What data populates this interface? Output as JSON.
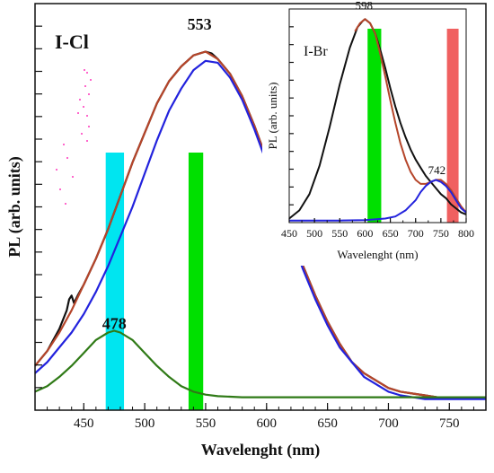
{
  "colors": {
    "black": "#111111",
    "brown": "#b5452a",
    "blue": "#2222dd",
    "green_curve": "#2f7a16",
    "green_band": "#00e000",
    "cyan_band": "#00e5f0",
    "red_band": "#f06060",
    "pink_noise": "#ff66cc"
  },
  "chart_data": [
    {
      "type": "line",
      "title": "I-Cl",
      "xlabel": "Wavelenght (nm)",
      "ylabel": "PL (arb. units)",
      "xlim": [
        410,
        780
      ],
      "ylim": [
        0,
        1.1
      ],
      "xticks": [
        450,
        500,
        550,
        600,
        650,
        700,
        750
      ],
      "grid": false,
      "peak_labels": [
        {
          "text": "553",
          "x": 545,
          "y": 1.02
        },
        {
          "text": "478",
          "x": 475,
          "y": 0.21
        }
      ],
      "bands": [
        {
          "color": "cyan",
          "x0": 468,
          "x1": 483
        },
        {
          "color": "green",
          "x0": 536,
          "x1": 548
        }
      ],
      "series": [
        {
          "color": "black",
          "x": [
            410,
            420,
            430,
            436,
            438,
            440,
            442,
            445,
            450,
            460,
            470,
            480,
            490,
            500,
            510,
            520,
            530,
            540,
            545,
            550,
            555,
            560,
            570,
            580,
            590,
            600,
            610,
            620,
            630,
            640,
            650,
            660,
            670,
            680,
            690,
            700,
            710,
            720,
            730,
            740,
            750,
            760,
            770,
            780
          ],
          "y": [
            0.12,
            0.16,
            0.22,
            0.27,
            0.3,
            0.31,
            0.29,
            0.31,
            0.34,
            0.41,
            0.49,
            0.58,
            0.67,
            0.75,
            0.83,
            0.89,
            0.93,
            0.96,
            0.965,
            0.97,
            0.965,
            0.95,
            0.91,
            0.85,
            0.77,
            0.68,
            0.58,
            0.48,
            0.39,
            0.31,
            0.24,
            0.18,
            0.13,
            0.1,
            0.08,
            0.06,
            0.05,
            0.045,
            0.04,
            0.035,
            0.035,
            0.035,
            0.035,
            0.035
          ]
        },
        {
          "color": "brown",
          "x": [
            410,
            420,
            430,
            440,
            450,
            460,
            470,
            480,
            490,
            500,
            510,
            520,
            530,
            540,
            550,
            560,
            570,
            580,
            590,
            600,
            610,
            620,
            630,
            640,
            650,
            660,
            670,
            680,
            690,
            700,
            710,
            720,
            730,
            740,
            750,
            760,
            770,
            780
          ],
          "y": [
            0.12,
            0.16,
            0.21,
            0.27,
            0.34,
            0.41,
            0.49,
            0.58,
            0.67,
            0.75,
            0.83,
            0.89,
            0.93,
            0.96,
            0.97,
            0.95,
            0.91,
            0.85,
            0.77,
            0.68,
            0.58,
            0.48,
            0.39,
            0.31,
            0.24,
            0.18,
            0.13,
            0.1,
            0.08,
            0.06,
            0.05,
            0.045,
            0.04,
            0.035,
            0.035,
            0.035,
            0.035,
            0.035
          ]
        },
        {
          "color": "blue",
          "x": [
            410,
            420,
            430,
            440,
            450,
            460,
            470,
            480,
            490,
            500,
            510,
            520,
            530,
            540,
            550,
            560,
            570,
            580,
            590,
            600,
            610,
            620,
            630,
            640,
            650,
            660,
            670,
            680,
            690,
            700,
            710,
            720,
            730,
            740,
            750,
            760,
            770,
            780
          ],
          "y": [
            0.1,
            0.13,
            0.17,
            0.21,
            0.26,
            0.32,
            0.39,
            0.47,
            0.55,
            0.64,
            0.73,
            0.81,
            0.87,
            0.92,
            0.945,
            0.94,
            0.9,
            0.84,
            0.76,
            0.67,
            0.57,
            0.47,
            0.38,
            0.3,
            0.23,
            0.17,
            0.13,
            0.09,
            0.07,
            0.05,
            0.04,
            0.035,
            0.03,
            0.03,
            0.03,
            0.03,
            0.03,
            0.03
          ]
        },
        {
          "color": "green",
          "x": [
            410,
            420,
            430,
            440,
            450,
            460,
            470,
            475,
            480,
            490,
            500,
            510,
            520,
            530,
            540,
            550,
            560,
            580,
            600,
            650,
            700,
            750,
            780
          ],
          "y": [
            0.05,
            0.065,
            0.09,
            0.12,
            0.155,
            0.19,
            0.21,
            0.215,
            0.21,
            0.19,
            0.155,
            0.12,
            0.09,
            0.065,
            0.05,
            0.042,
            0.038,
            0.035,
            0.035,
            0.035,
            0.035,
            0.035,
            0.035
          ]
        }
      ]
    },
    {
      "type": "line",
      "title": "I-Br",
      "xlabel": "Wavelenght (nm)",
      "ylabel": "PL (arb. units)",
      "xlim": [
        450,
        800
      ],
      "ylim": [
        0,
        1.05
      ],
      "xticks": [
        450,
        500,
        550,
        600,
        650,
        700,
        750,
        800
      ],
      "grid": false,
      "peak_labels": [
        {
          "text": "598",
          "x": 598,
          "y": 1.03
        },
        {
          "text": "742",
          "x": 742,
          "y": 0.22
        }
      ],
      "bands": [
        {
          "color": "green",
          "x0": 605,
          "x1": 632
        },
        {
          "color": "red",
          "x0": 762,
          "x1": 785
        }
      ],
      "series": [
        {
          "color": "black",
          "x": [
            450,
            470,
            490,
            510,
            530,
            550,
            570,
            585,
            595,
            600,
            610,
            620,
            630,
            640,
            650,
            660,
            670,
            680,
            690,
            700,
            710,
            720,
            730,
            740,
            750,
            760,
            770,
            780,
            790,
            800
          ],
          "y": [
            0.02,
            0.06,
            0.14,
            0.28,
            0.47,
            0.68,
            0.86,
            0.96,
            0.99,
            1.0,
            0.98,
            0.93,
            0.85,
            0.76,
            0.66,
            0.57,
            0.49,
            0.42,
            0.36,
            0.31,
            0.27,
            0.23,
            0.2,
            0.17,
            0.14,
            0.12,
            0.09,
            0.07,
            0.05,
            0.04
          ]
        },
        {
          "color": "brown",
          "x": [
            580,
            590,
            600,
            610,
            620,
            630,
            640,
            650,
            660,
            670,
            680,
            690,
            700,
            710,
            720,
            730,
            740,
            750,
            760,
            770,
            780,
            790,
            800
          ],
          "y": [
            0.94,
            0.98,
            1.0,
            0.98,
            0.93,
            0.83,
            0.72,
            0.6,
            0.49,
            0.39,
            0.31,
            0.25,
            0.21,
            0.19,
            0.19,
            0.2,
            0.21,
            0.21,
            0.19,
            0.16,
            0.12,
            0.08,
            0.05
          ]
        },
        {
          "color": "blue",
          "x": [
            450,
            500,
            550,
            600,
            640,
            660,
            680,
            700,
            710,
            720,
            730,
            740,
            750,
            760,
            770,
            780,
            790,
            800
          ],
          "y": [
            0.01,
            0.01,
            0.01,
            0.012,
            0.02,
            0.03,
            0.06,
            0.11,
            0.15,
            0.18,
            0.2,
            0.21,
            0.2,
            0.18,
            0.15,
            0.11,
            0.07,
            0.05
          ]
        }
      ]
    }
  ]
}
